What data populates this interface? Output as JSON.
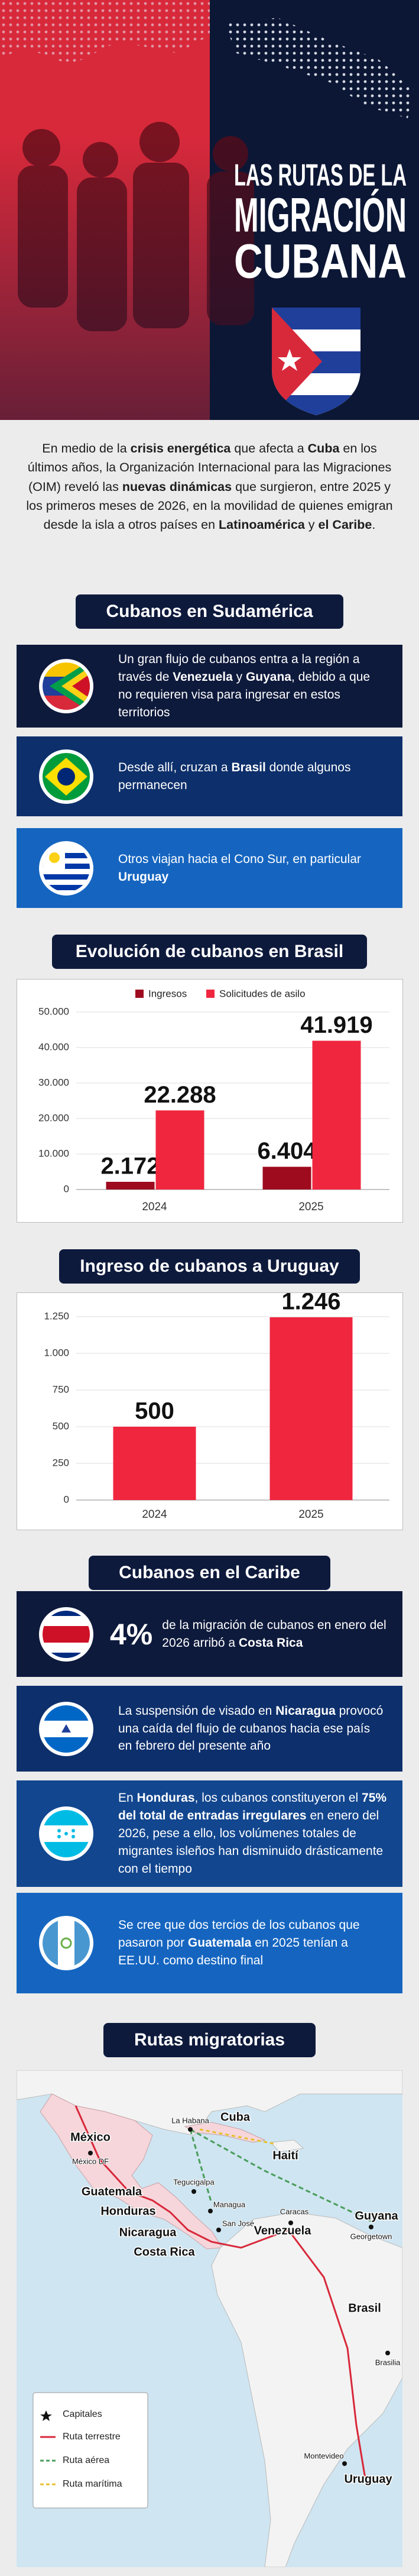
{
  "header": {
    "title_lines": [
      "LAS RUTAS DE LA",
      "MIGRACIÓN",
      "CUBANA"
    ]
  },
  "intro": [
    "En medio de la ",
    "crisis energética",
    " que afecta a ",
    "Cuba",
    " en los últimos años, la Organización Internacional para las Migraciones (OIM) reveló las ",
    "nuevas dinámicas",
    " que surgieron, entre 2025 y los primeros meses de 2026, en la movilidad de quienes emigran desde la isla a otros países en ",
    "Latinoamérica",
    " y ",
    "el Caribe",
    "."
  ],
  "south_america": {
    "title": "Cubanos en Sudamérica",
    "cards": [
      [
        "Un gran flujo de cubanos entra a la región a través de ",
        "Venezuela",
        " y ",
        "Guyana",
        ", debido a que no requieren visa para ingresar en estos territorios"
      ],
      [
        "Desde allí, cruzan a ",
        "Brasil",
        " donde algunos permanecen"
      ],
      [
        "Otros viajan hacia el Cono Sur, en particular ",
        "Uruguay"
      ]
    ]
  },
  "chart_data": [
    {
      "type": "bar",
      "title": "Evolución de cubanos en Brasil",
      "categories": [
        "2024",
        "2025"
      ],
      "series": [
        {
          "name": "Ingresos",
          "color": "#9e0b1e",
          "values": [
            2172,
            6404
          ],
          "value_labels": [
            "2.172",
            "6.404"
          ]
        },
        {
          "name": "Solicitudes de asilo",
          "color": "#f0263f",
          "values": [
            22288,
            41919
          ],
          "value_labels": [
            "22.288",
            "41.919"
          ]
        }
      ],
      "ylim": [
        0,
        50000
      ],
      "yticks": [
        0,
        {
          "value": 10000,
          "label": "10.000"
        },
        {
          "value": 20000,
          "label": "20.000"
        },
        {
          "value": 30000,
          "label": "30.000"
        },
        {
          "value": 40000,
          "label": "40.000"
        },
        {
          "value": 50000,
          "label": "50.000"
        }
      ],
      "grid": true,
      "legend": "top"
    },
    {
      "type": "bar",
      "title": "Ingreso de cubanos a Uruguay",
      "categories": [
        "2024",
        "2025"
      ],
      "values": [
        500,
        1246
      ],
      "value_labels": [
        "500",
        "1.246"
      ],
      "color": "#f0263f",
      "ylim": [
        0,
        1250
      ],
      "yticks": [
        0,
        250,
        500,
        750,
        {
          "value": 1000,
          "label": "1.000"
        },
        {
          "value": 1250,
          "label": "1.250"
        }
      ],
      "grid": true
    }
  ],
  "caribbean": {
    "title": "Cubanos en el Caribe",
    "highlight": "4%",
    "cards": [
      [
        "de la migración de cubanos en enero del 2026 arribó a ",
        "Costa Rica"
      ],
      [
        "La suspensión de visado en ",
        "Nicaragua",
        " provocó una caída del flujo de cubanos hacia ese país en febrero del presente año"
      ],
      [
        "En ",
        "Honduras",
        ", los cubanos constituyeron el ",
        "75% del total de entradas irregulares",
        " en enero del 2026, pese a ello, los volúmenes totales de migrantes isleños han disminuido drásticamente con el tiempo"
      ],
      [
        "Se cree que dos tercios de los cubanos que pasaron por ",
        "Guatemala",
        " en 2025 tenían a EE.UU. como destino final"
      ]
    ]
  },
  "map": {
    "title": "Rutas migratorias",
    "labels": [
      "México",
      "México DF",
      "La Habana",
      "Cuba",
      "Haití",
      "Guatemala",
      "Honduras",
      "Tegucigalpa",
      "Managua",
      "Nicaragua",
      "San José",
      "Costa Rica",
      "Caracas",
      "Venezuela",
      "Guyana",
      "Georgetown",
      "Brasil",
      "Brasilia",
      "Montevideo",
      "Uruguay"
    ],
    "legend": [
      "Capitales",
      "Ruta terrestre",
      "Ruta aérea",
      "Ruta marítima"
    ]
  }
}
